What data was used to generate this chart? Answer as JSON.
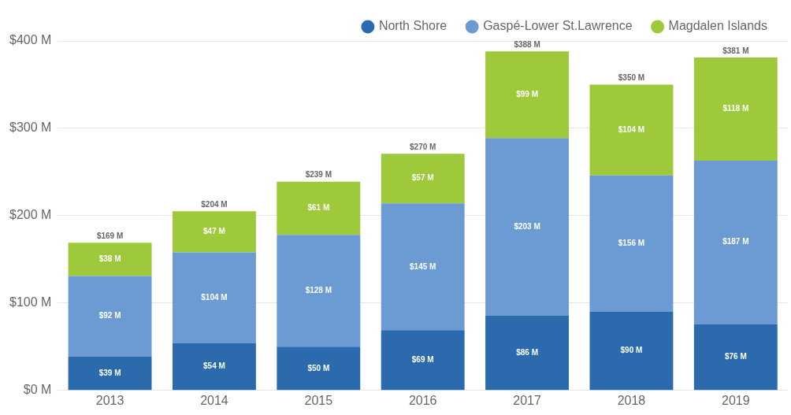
{
  "chart_data": {
    "type": "bar",
    "stacked": true,
    "categories": [
      "2013",
      "2014",
      "2015",
      "2016",
      "2017",
      "2018",
      "2019"
    ],
    "series": [
      {
        "name": "North Shore",
        "color": "#2a6aad",
        "values": [
          39,
          54,
          50,
          69,
          86,
          90,
          76
        ],
        "value_labels": [
          "$39 M",
          "$54 M",
          "$50 M",
          "$69 M",
          "$86 M",
          "$90 M",
          "$76 M"
        ]
      },
      {
        "name": "Gaspé-Lower St.Lawrence",
        "color": "#6b9bd2",
        "values": [
          92,
          104,
          128,
          145,
          203,
          156,
          187
        ],
        "value_labels": [
          "$92 M",
          "$104 M",
          "$128 M",
          "$145 M",
          "$203 M",
          "$156 M",
          "$187 M"
        ]
      },
      {
        "name": "Magdalen Islands",
        "color": "#9dc93b",
        "values": [
          38,
          47,
          61,
          57,
          99,
          104,
          118
        ],
        "value_labels": [
          "$38 M",
          "$47 M",
          "$61 M",
          "$57 M",
          "$99 M",
          "$104 M",
          "$118 M"
        ]
      }
    ],
    "totals": [
      "$169 M",
      "$204 M",
      "$239 M",
      "$270 M",
      "$388 M",
      "$350 M",
      "$381 M"
    ],
    "ylim": [
      0,
      400
    ],
    "yticks": [
      {
        "value": 0,
        "label": "$0 M"
      },
      {
        "value": 100,
        "label": "$100 M"
      },
      {
        "value": 200,
        "label": "$200 M"
      },
      {
        "value": 300,
        "label": "$300 M"
      },
      {
        "value": 400,
        "label": "$400 M"
      }
    ],
    "grid": "y",
    "legend": "top right"
  }
}
